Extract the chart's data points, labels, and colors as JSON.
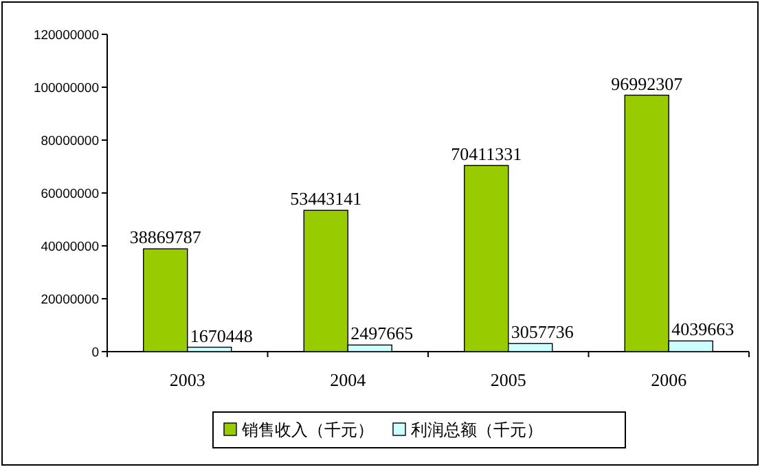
{
  "chart_data": {
    "type": "bar",
    "categories": [
      "2003",
      "2004",
      "2005",
      "2006"
    ],
    "series": [
      {
        "name": "销售收入（千元）",
        "color": "#99cc00",
        "values": [
          38869787,
          53443141,
          70411331,
          96992307
        ]
      },
      {
        "name": "利润总额（千元）",
        "color": "#ccffff",
        "values": [
          1670448,
          2497665,
          3057736,
          4039663
        ]
      }
    ],
    "ylim": [
      0,
      120000000
    ],
    "yticks": [
      0,
      20000000,
      40000000,
      60000000,
      80000000,
      100000000,
      120000000
    ],
    "data_labels": true,
    "legend": "bottom",
    "grid": false
  }
}
